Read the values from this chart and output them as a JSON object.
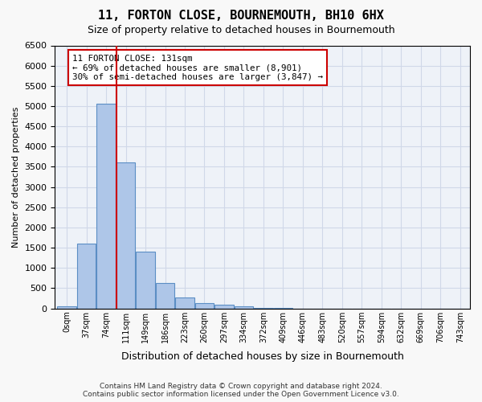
{
  "title": "11, FORTON CLOSE, BOURNEMOUTH, BH10 6HX",
  "subtitle": "Size of property relative to detached houses in Bournemouth",
  "xlabel": "Distribution of detached houses by size in Bournemouth",
  "ylabel": "Number of detached properties",
  "footer_line1": "Contains HM Land Registry data © Crown copyright and database right 2024.",
  "footer_line2": "Contains public sector information licensed under the Open Government Licence v3.0.",
  "bin_labels": [
    "0sqm",
    "37sqm",
    "74sqm",
    "111sqm",
    "149sqm",
    "186sqm",
    "223sqm",
    "260sqm",
    "297sqm",
    "334sqm",
    "372sqm",
    "409sqm",
    "446sqm",
    "483sqm",
    "520sqm",
    "557sqm",
    "594sqm",
    "632sqm",
    "669sqm",
    "706sqm",
    "743sqm"
  ],
  "bar_values": [
    50,
    1600,
    5050,
    3600,
    1400,
    620,
    270,
    130,
    90,
    50,
    20,
    5,
    0,
    0,
    0,
    0,
    0,
    0,
    0,
    0,
    0
  ],
  "ylim": [
    0,
    6500
  ],
  "yticks": [
    0,
    500,
    1000,
    1500,
    2000,
    2500,
    3000,
    3500,
    4000,
    4500,
    5000,
    5500,
    6000,
    6500
  ],
  "bar_color": "#aec6e8",
  "bar_edge_color": "#5b8ec4",
  "vline_color": "#cc0000",
  "annotation_text": "11 FORTON CLOSE: 131sqm\n← 69% of detached houses are smaller (8,901)\n30% of semi-detached houses are larger (3,847) →",
  "annotation_box_color": "#ffffff",
  "annotation_box_edge": "#cc0000",
  "grid_color": "#d0d8e8",
  "bg_color": "#eef2f8",
  "fig_bg_color": "#f8f8f8"
}
